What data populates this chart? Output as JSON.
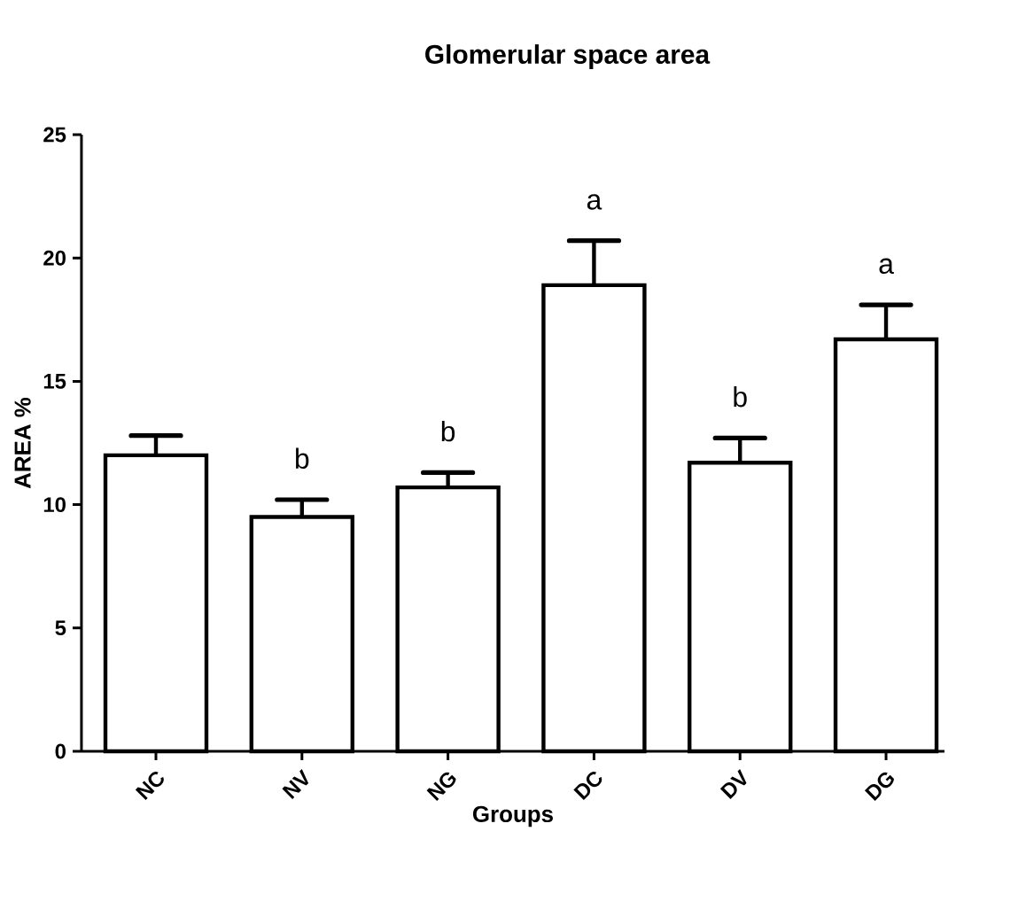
{
  "chart_data": {
    "type": "bar",
    "title": "Glomerular space area",
    "xlabel": "Groups",
    "ylabel": "AREA %",
    "categories": [
      "NC",
      "NV",
      "NG",
      "DC",
      "DV",
      "DG"
    ],
    "values": [
      12.0,
      9.5,
      10.7,
      18.9,
      11.7,
      16.7
    ],
    "errors": [
      [
        12.0,
        12.8
      ],
      [
        9.5,
        10.2
      ],
      [
        10.7,
        11.3
      ],
      [
        18.9,
        20.7
      ],
      [
        11.7,
        12.7
      ],
      [
        16.7,
        18.1
      ]
    ],
    "color": "#000000",
    "ylim": [
      0,
      25
    ],
    "yticks": [
      0,
      5,
      10,
      15,
      20,
      25
    ],
    "value_labels": [
      null,
      "b",
      "b",
      "a",
      "b",
      "a"
    ]
  }
}
